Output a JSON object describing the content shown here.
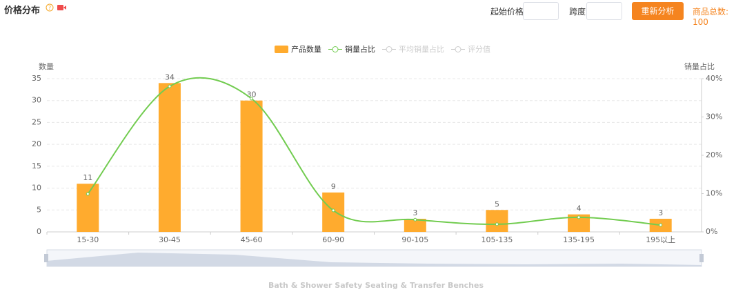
{
  "header": {
    "title": "价格分布",
    "start_label": "起始价格",
    "step_label": "跨度",
    "button": "重新分析",
    "total": "商品总数: 100"
  },
  "chart_data": {
    "type": "bar",
    "categories": [
      "15-30",
      "30-45",
      "45-60",
      "60-90",
      "90-105",
      "105-135",
      "135-195",
      "195以上"
    ],
    "series": [
      {
        "name": "产品数量",
        "color": "#ffab2e",
        "type": "bar",
        "values": [
          11,
          34,
          30,
          9,
          3,
          5,
          4,
          3
        ]
      },
      {
        "name": "销量占比",
        "color": "#72cc50",
        "type": "line",
        "axis": "y2",
        "values": [
          9.9,
          38.0,
          34.8,
          5.6,
          3.2,
          2.0,
          3.8,
          1.8
        ]
      }
    ],
    "hidden_series": [
      {
        "name": "平均销量占比"
      },
      {
        "name": "评分值"
      }
    ],
    "ylabel": "数量",
    "y2label": "销量占比",
    "ylim": [
      0,
      35
    ],
    "yticks": [
      0,
      5,
      10,
      15,
      20,
      25,
      30,
      35
    ],
    "y2lim": [
      0,
      40
    ],
    "y2ticks": [
      {
        "value": 0,
        "label": "0%"
      },
      {
        "value": 10,
        "label": "10%"
      },
      {
        "value": 20,
        "label": "20%"
      },
      {
        "value": 30,
        "label": "30%"
      },
      {
        "value": 40,
        "label": "40%"
      }
    ],
    "grid": true,
    "legend": "top",
    "footer": "Bath & Shower Safety Seating & Transfer Benches"
  }
}
